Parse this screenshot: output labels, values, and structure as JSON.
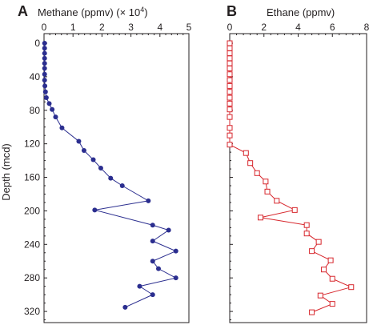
{
  "colors": {
    "methane": "#2b2e8f",
    "ethane": "#d7262c",
    "axis": "#231f20"
  },
  "ylabel": "Depth (mcd)",
  "panels": [
    {
      "letter": "A",
      "title": "Methane (ppmv) (× 10",
      "title_exp": "4",
      "title_close": ")"
    },
    {
      "letter": "B",
      "title": "Ethane (ppmv)"
    }
  ],
  "chart_data": [
    {
      "type": "line",
      "panel": "A",
      "marker": "filled-circle",
      "xlim": [
        0,
        5
      ],
      "xticks": [
        "0",
        "1",
        "2",
        "3",
        "4",
        "5"
      ],
      "ylim": [
        0,
        340
      ],
      "yticks": [
        "0",
        "40",
        "80",
        "120",
        "160",
        "200",
        "240",
        "280",
        "320"
      ],
      "y_inverted": true,
      "series": [
        {
          "x": [
            0.02,
            0.02,
            0.02,
            0.02,
            0.02,
            0.02,
            0.02,
            0.02,
            0.03,
            0.05,
            0.08,
            0.18,
            0.28,
            0.4,
            0.62,
            1.2,
            1.38,
            1.7,
            1.96,
            2.3,
            2.7,
            3.6,
            1.75,
            3.75,
            4.3,
            3.75,
            4.55,
            3.75,
            3.95,
            4.55,
            3.3,
            3.75,
            2.8
          ],
          "y": [
            0,
            6,
            12,
            18,
            24,
            30,
            37,
            44,
            51,
            58,
            65,
            72,
            79,
            88,
            101,
            117,
            128,
            139,
            149,
            161,
            170,
            188,
            199,
            217,
            223,
            236,
            248,
            260,
            269,
            280,
            290,
            300,
            315
          ]
        }
      ]
    },
    {
      "type": "line",
      "panel": "B",
      "marker": "open-square",
      "xlim": [
        0,
        8
      ],
      "xticks": [
        "0",
        "2",
        "4",
        "6",
        "8"
      ],
      "ylim": [
        0,
        340
      ],
      "yticks": [
        "0",
        "40",
        "80",
        "120",
        "160",
        "200",
        "240",
        "280",
        "320"
      ],
      "y_inverted": true,
      "series": [
        {
          "x": [
            0,
            0,
            0,
            0,
            0,
            0,
            0,
            0,
            0,
            0,
            0,
            0,
            0,
            0,
            0,
            0,
            0,
            0.95,
            1.2,
            1.6,
            2.1,
            2.2,
            2.75,
            3.8,
            1.8,
            4.5,
            4.5,
            5.2,
            4.8,
            5.9,
            5.5,
            6.0,
            7.1,
            5.3,
            6.0,
            4.8
          ],
          "y": [
            0,
            6,
            12,
            18,
            24,
            30,
            37,
            44,
            51,
            58,
            65,
            72,
            79,
            88,
            101,
            110,
            121,
            131,
            143,
            155,
            165,
            177,
            188,
            199,
            208,
            217,
            227,
            237,
            248,
            259,
            270,
            281,
            291,
            301,
            311,
            321
          ]
        }
      ]
    }
  ]
}
